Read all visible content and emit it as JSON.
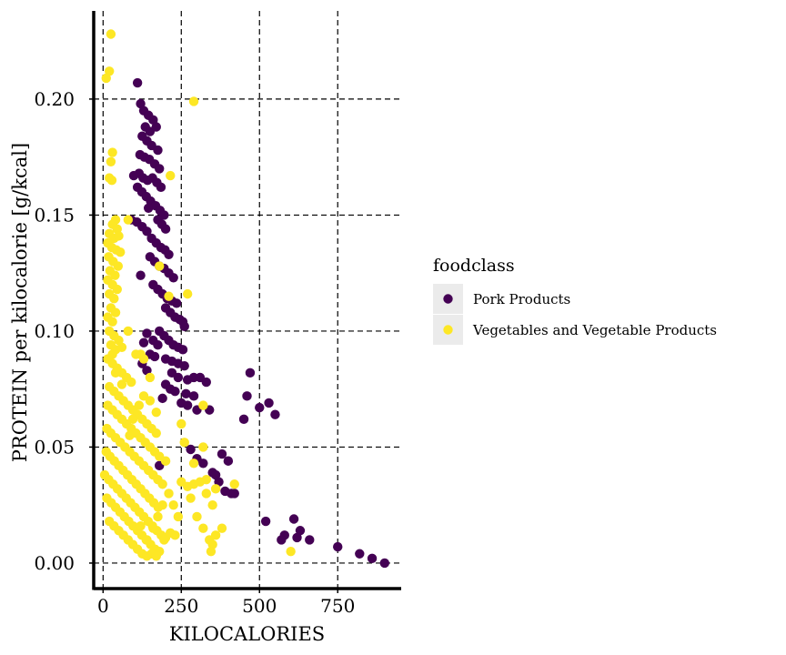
{
  "chart_data": {
    "type": "scatter",
    "title": "",
    "xlabel": "KILOCALORIES",
    "ylabel": "PROTEIN per kilocalorie [g/kcal]",
    "xlim": [
      -30,
      950
    ],
    "ylim": [
      -0.011,
      0.238
    ],
    "x_ticks": [
      0,
      250,
      500,
      750
    ],
    "x_tick_labels": [
      "0",
      "250",
      "500",
      "750"
    ],
    "y_ticks": [
      0.0,
      0.05,
      0.1,
      0.15,
      0.2
    ],
    "y_tick_labels": [
      "0.00",
      "0.05",
      "0.10",
      "0.15",
      "0.20"
    ],
    "grid": "dashed",
    "legend": {
      "title": "foodclass",
      "position": "right",
      "entries": [
        {
          "label": "Pork Products",
          "color": "#440154"
        },
        {
          "label": "Vegetables and Vegetable Products",
          "color": "#fde725"
        }
      ]
    },
    "series": [
      {
        "name": "Pork Products",
        "color": "#440154",
        "points": [
          [
            110,
            0.207
          ],
          [
            120,
            0.198
          ],
          [
            130,
            0.195
          ],
          [
            145,
            0.193
          ],
          [
            160,
            0.191
          ],
          [
            135,
            0.188
          ],
          [
            150,
            0.186
          ],
          [
            170,
            0.188
          ],
          [
            125,
            0.184
          ],
          [
            140,
            0.182
          ],
          [
            155,
            0.18
          ],
          [
            175,
            0.178
          ],
          [
            118,
            0.176
          ],
          [
            132,
            0.175
          ],
          [
            148,
            0.174
          ],
          [
            165,
            0.172
          ],
          [
            180,
            0.17
          ],
          [
            115,
            0.168
          ],
          [
            128,
            0.166
          ],
          [
            142,
            0.165
          ],
          [
            158,
            0.166
          ],
          [
            172,
            0.164
          ],
          [
            185,
            0.162
          ],
          [
            98,
            0.167
          ],
          [
            110,
            0.162
          ],
          [
            124,
            0.16
          ],
          [
            138,
            0.158
          ],
          [
            152,
            0.156
          ],
          [
            168,
            0.154
          ],
          [
            182,
            0.152
          ],
          [
            195,
            0.15
          ],
          [
            145,
            0.153
          ],
          [
            175,
            0.148
          ],
          [
            188,
            0.146
          ],
          [
            200,
            0.144
          ],
          [
            90,
            0.148
          ],
          [
            108,
            0.147
          ],
          [
            125,
            0.145
          ],
          [
            140,
            0.143
          ],
          [
            155,
            0.14
          ],
          [
            170,
            0.138
          ],
          [
            185,
            0.136
          ],
          [
            198,
            0.135
          ],
          [
            210,
            0.133
          ],
          [
            150,
            0.132
          ],
          [
            165,
            0.13
          ],
          [
            180,
            0.128
          ],
          [
            195,
            0.127
          ],
          [
            210,
            0.125
          ],
          [
            225,
            0.123
          ],
          [
            120,
            0.124
          ],
          [
            160,
            0.12
          ],
          [
            175,
            0.118
          ],
          [
            190,
            0.116
          ],
          [
            205,
            0.114
          ],
          [
            220,
            0.113
          ],
          [
            235,
            0.112
          ],
          [
            200,
            0.11
          ],
          [
            215,
            0.108
          ],
          [
            230,
            0.106
          ],
          [
            245,
            0.105
          ],
          [
            255,
            0.104
          ],
          [
            260,
            0.102
          ],
          [
            180,
            0.1
          ],
          [
            195,
            0.098
          ],
          [
            210,
            0.096
          ],
          [
            225,
            0.094
          ],
          [
            240,
            0.093
          ],
          [
            255,
            0.092
          ],
          [
            160,
            0.096
          ],
          [
            175,
            0.094
          ],
          [
            140,
            0.099
          ],
          [
            130,
            0.095
          ],
          [
            150,
            0.09
          ],
          [
            165,
            0.089
          ],
          [
            200,
            0.088
          ],
          [
            220,
            0.087
          ],
          [
            240,
            0.086
          ],
          [
            260,
            0.085
          ],
          [
            125,
            0.086
          ],
          [
            140,
            0.083
          ],
          [
            220,
            0.082
          ],
          [
            240,
            0.08
          ],
          [
            270,
            0.079
          ],
          [
            290,
            0.08
          ],
          [
            310,
            0.08
          ],
          [
            330,
            0.078
          ],
          [
            200,
            0.077
          ],
          [
            215,
            0.075
          ],
          [
            230,
            0.074
          ],
          [
            265,
            0.073
          ],
          [
            290,
            0.072
          ],
          [
            190,
            0.071
          ],
          [
            250,
            0.069
          ],
          [
            270,
            0.068
          ],
          [
            300,
            0.066
          ],
          [
            340,
            0.066
          ],
          [
            470,
            0.082
          ],
          [
            500,
            0.067
          ],
          [
            460,
            0.072
          ],
          [
            530,
            0.069
          ],
          [
            550,
            0.064
          ],
          [
            450,
            0.062
          ],
          [
            280,
            0.049
          ],
          [
            300,
            0.045
          ],
          [
            320,
            0.043
          ],
          [
            350,
            0.039
          ],
          [
            380,
            0.047
          ],
          [
            400,
            0.044
          ],
          [
            370,
            0.035
          ],
          [
            390,
            0.031
          ],
          [
            410,
            0.03
          ],
          [
            420,
            0.03
          ],
          [
            360,
            0.038
          ],
          [
            180,
            0.042
          ],
          [
            520,
            0.018
          ],
          [
            580,
            0.012
          ],
          [
            610,
            0.019
          ],
          [
            630,
            0.014
          ],
          [
            570,
            0.01
          ],
          [
            620,
            0.011
          ],
          [
            660,
            0.01
          ],
          [
            750,
            0.007
          ],
          [
            820,
            0.004
          ],
          [
            860,
            0.002
          ],
          [
            900,
            0.0
          ]
        ]
      },
      {
        "name": "Vegetables and Vegetable Products",
        "color": "#fde725",
        "points": [
          [
            25,
            0.228
          ],
          [
            20,
            0.212
          ],
          [
            10,
            0.209
          ],
          [
            290,
            0.199
          ],
          [
            30,
            0.177
          ],
          [
            25,
            0.173
          ],
          [
            20,
            0.166
          ],
          [
            28,
            0.165
          ],
          [
            215,
            0.167
          ],
          [
            80,
            0.148
          ],
          [
            40,
            0.148
          ],
          [
            30,
            0.146
          ],
          [
            45,
            0.144
          ],
          [
            20,
            0.142
          ],
          [
            35,
            0.14
          ],
          [
            50,
            0.141
          ],
          [
            15,
            0.138
          ],
          [
            28,
            0.136
          ],
          [
            42,
            0.135
          ],
          [
            55,
            0.134
          ],
          [
            18,
            0.132
          ],
          [
            32,
            0.13
          ],
          [
            48,
            0.128
          ],
          [
            22,
            0.126
          ],
          [
            38,
            0.124
          ],
          [
            15,
            0.122
          ],
          [
            30,
            0.12
          ],
          [
            45,
            0.118
          ],
          [
            20,
            0.116
          ],
          [
            35,
            0.114
          ],
          [
            25,
            0.11
          ],
          [
            40,
            0.108
          ],
          [
            15,
            0.106
          ],
          [
            30,
            0.104
          ],
          [
            20,
            0.1
          ],
          [
            35,
            0.098
          ],
          [
            50,
            0.096
          ],
          [
            25,
            0.094
          ],
          [
            40,
            0.092
          ],
          [
            60,
            0.093
          ],
          [
            80,
            0.1
          ],
          [
            120,
            0.09
          ],
          [
            210,
            0.115
          ],
          [
            270,
            0.116
          ],
          [
            180,
            0.128
          ],
          [
            15,
            0.088
          ],
          [
            30,
            0.086
          ],
          [
            45,
            0.084
          ],
          [
            60,
            0.082
          ],
          [
            75,
            0.08
          ],
          [
            90,
            0.078
          ],
          [
            105,
            0.09
          ],
          [
            130,
            0.088
          ],
          [
            150,
            0.08
          ],
          [
            20,
            0.076
          ],
          [
            35,
            0.074
          ],
          [
            50,
            0.072
          ],
          [
            65,
            0.07
          ],
          [
            80,
            0.068
          ],
          [
            95,
            0.066
          ],
          [
            110,
            0.064
          ],
          [
            125,
            0.062
          ],
          [
            140,
            0.06
          ],
          [
            155,
            0.058
          ],
          [
            170,
            0.056
          ],
          [
            15,
            0.068
          ],
          [
            30,
            0.066
          ],
          [
            45,
            0.064
          ],
          [
            60,
            0.062
          ],
          [
            75,
            0.06
          ],
          [
            90,
            0.058
          ],
          [
            105,
            0.056
          ],
          [
            120,
            0.054
          ],
          [
            135,
            0.052
          ],
          [
            150,
            0.05
          ],
          [
            165,
            0.048
          ],
          [
            180,
            0.046
          ],
          [
            200,
            0.044
          ],
          [
            12,
            0.058
          ],
          [
            25,
            0.056
          ],
          [
            40,
            0.054
          ],
          [
            55,
            0.052
          ],
          [
            70,
            0.05
          ],
          [
            85,
            0.048
          ],
          [
            100,
            0.046
          ],
          [
            115,
            0.044
          ],
          [
            130,
            0.042
          ],
          [
            145,
            0.04
          ],
          [
            160,
            0.038
          ],
          [
            175,
            0.036
          ],
          [
            190,
            0.034
          ],
          [
            10,
            0.048
          ],
          [
            22,
            0.046
          ],
          [
            36,
            0.044
          ],
          [
            50,
            0.042
          ],
          [
            64,
            0.04
          ],
          [
            78,
            0.038
          ],
          [
            92,
            0.036
          ],
          [
            106,
            0.034
          ],
          [
            120,
            0.032
          ],
          [
            134,
            0.03
          ],
          [
            148,
            0.028
          ],
          [
            162,
            0.026
          ],
          [
            176,
            0.024
          ],
          [
            5,
            0.038
          ],
          [
            18,
            0.036
          ],
          [
            32,
            0.034
          ],
          [
            46,
            0.032
          ],
          [
            60,
            0.03
          ],
          [
            74,
            0.028
          ],
          [
            88,
            0.026
          ],
          [
            102,
            0.024
          ],
          [
            116,
            0.022
          ],
          [
            130,
            0.02
          ],
          [
            144,
            0.018
          ],
          [
            158,
            0.016
          ],
          [
            172,
            0.014
          ],
          [
            186,
            0.012
          ],
          [
            200,
            0.011
          ],
          [
            215,
            0.013
          ],
          [
            230,
            0.012
          ],
          [
            240,
            0.02
          ],
          [
            12,
            0.028
          ],
          [
            26,
            0.026
          ],
          [
            40,
            0.024
          ],
          [
            54,
            0.022
          ],
          [
            68,
            0.02
          ],
          [
            82,
            0.018
          ],
          [
            96,
            0.016
          ],
          [
            110,
            0.014
          ],
          [
            124,
            0.012
          ],
          [
            138,
            0.01
          ],
          [
            152,
            0.008
          ],
          [
            166,
            0.006
          ],
          [
            180,
            0.005
          ],
          [
            195,
            0.01
          ],
          [
            20,
            0.018
          ],
          [
            35,
            0.016
          ],
          [
            50,
            0.014
          ],
          [
            65,
            0.012
          ],
          [
            80,
            0.01
          ],
          [
            95,
            0.008
          ],
          [
            110,
            0.006
          ],
          [
            125,
            0.004
          ],
          [
            140,
            0.003
          ],
          [
            155,
            0.004
          ],
          [
            170,
            0.003
          ],
          [
            250,
            0.06
          ],
          [
            260,
            0.052
          ],
          [
            290,
            0.043
          ],
          [
            320,
            0.05
          ],
          [
            310,
            0.035
          ],
          [
            330,
            0.03
          ],
          [
            350,
            0.025
          ],
          [
            280,
            0.028
          ],
          [
            300,
            0.02
          ],
          [
            320,
            0.015
          ],
          [
            340,
            0.01
          ],
          [
            360,
            0.012
          ],
          [
            380,
            0.015
          ],
          [
            250,
            0.035
          ],
          [
            270,
            0.033
          ],
          [
            290,
            0.034
          ],
          [
            330,
            0.036
          ],
          [
            360,
            0.032
          ],
          [
            420,
            0.034
          ],
          [
            350,
            0.008
          ],
          [
            345,
            0.005
          ],
          [
            600,
            0.005
          ],
          [
            120,
            0.016
          ],
          [
            140,
            0.01
          ],
          [
            160,
            0.015
          ],
          [
            175,
            0.02
          ],
          [
            190,
            0.025
          ],
          [
            210,
            0.03
          ],
          [
            225,
            0.025
          ],
          [
            85,
            0.055
          ],
          [
            95,
            0.062
          ],
          [
            115,
            0.068
          ],
          [
            130,
            0.072
          ],
          [
            60,
            0.077
          ],
          [
            40,
            0.082
          ],
          [
            30,
            0.09
          ],
          [
            150,
            0.07
          ],
          [
            170,
            0.065
          ],
          [
            320,
            0.068
          ]
        ]
      }
    ]
  }
}
